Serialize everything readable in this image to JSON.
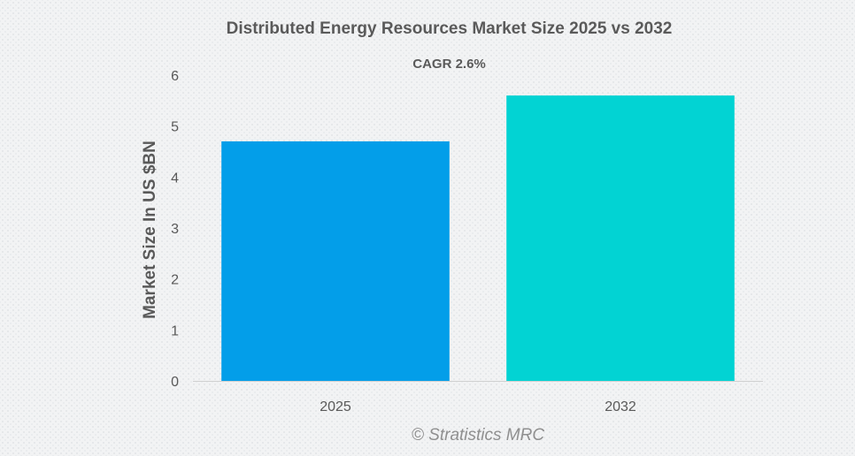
{
  "chart_data": {
    "type": "bar",
    "title": "Distributed Energy Resources Market Size 2025 vs 2032",
    "subtitle": "CAGR 2.6%",
    "categories": [
      "2025",
      "2032"
    ],
    "values": [
      4.7,
      5.6
    ],
    "colors": [
      "#039ee9",
      "#02d3d3"
    ],
    "xlabel": "",
    "ylabel": "Market Size In US $BN",
    "ylim": [
      0,
      6
    ],
    "yticks": [
      "0",
      "1",
      "2",
      "3",
      "4",
      "5",
      "6"
    ],
    "grid": false,
    "legend": "none"
  },
  "watermark": "© Stratistics MRC"
}
